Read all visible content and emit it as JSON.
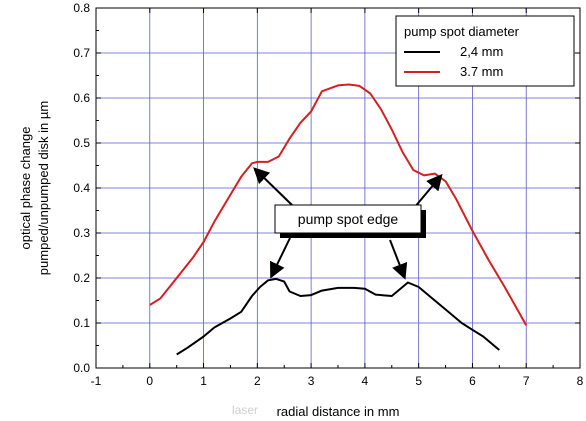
{
  "chart_data": {
    "type": "line",
    "title": "",
    "xlabel": "radial distance in mm",
    "ylabel_line1": "optical phase change",
    "ylabel_line2": "pumped/unpumped disk in µm",
    "xlim": [
      -1,
      8
    ],
    "ylim": [
      0.0,
      0.8
    ],
    "xticks": [
      "-1",
      "0",
      "1",
      "2",
      "3",
      "4",
      "5",
      "6",
      "7",
      "8"
    ],
    "yticks": [
      "0.0",
      "0.1",
      "0.2",
      "0.3",
      "0.4",
      "0.5",
      "0.6",
      "0.7",
      "0.8"
    ],
    "grid": true,
    "legend": {
      "title": "pump spot diameter",
      "placement": "top-right"
    },
    "annotation": "pump spot edge",
    "watermark": "laser",
    "series": [
      {
        "name": "2,4 mm",
        "color": "#000000",
        "x": [
          0.5,
          0.7,
          1.0,
          1.2,
          1.5,
          1.7,
          1.9,
          2.05,
          2.2,
          2.35,
          2.5,
          2.6,
          2.8,
          3.0,
          3.2,
          3.5,
          3.8,
          4.0,
          4.2,
          4.5,
          4.8,
          5.0,
          5.2,
          5.5,
          5.8,
          6.0,
          6.2,
          6.5
        ],
        "y": [
          0.03,
          0.045,
          0.07,
          0.09,
          0.11,
          0.125,
          0.16,
          0.18,
          0.195,
          0.198,
          0.192,
          0.17,
          0.16,
          0.162,
          0.172,
          0.178,
          0.178,
          0.176,
          0.163,
          0.16,
          0.19,
          0.18,
          0.16,
          0.13,
          0.1,
          0.085,
          0.07,
          0.04
        ]
      },
      {
        "name": "3.7 mm",
        "color": "#d42020",
        "x": [
          0.0,
          0.2,
          0.5,
          0.8,
          1.0,
          1.2,
          1.5,
          1.7,
          1.9,
          2.0,
          2.2,
          2.4,
          2.6,
          2.8,
          3.0,
          3.2,
          3.5,
          3.7,
          3.9,
          4.1,
          4.3,
          4.5,
          4.7,
          4.9,
          5.1,
          5.3,
          5.5,
          5.7,
          6.0,
          6.3,
          6.6,
          7.0
        ],
        "y": [
          0.14,
          0.155,
          0.2,
          0.245,
          0.28,
          0.325,
          0.385,
          0.425,
          0.455,
          0.458,
          0.458,
          0.47,
          0.51,
          0.545,
          0.57,
          0.615,
          0.628,
          0.63,
          0.627,
          0.61,
          0.575,
          0.53,
          0.48,
          0.44,
          0.428,
          0.432,
          0.415,
          0.375,
          0.305,
          0.24,
          0.18,
          0.095
        ]
      }
    ]
  }
}
